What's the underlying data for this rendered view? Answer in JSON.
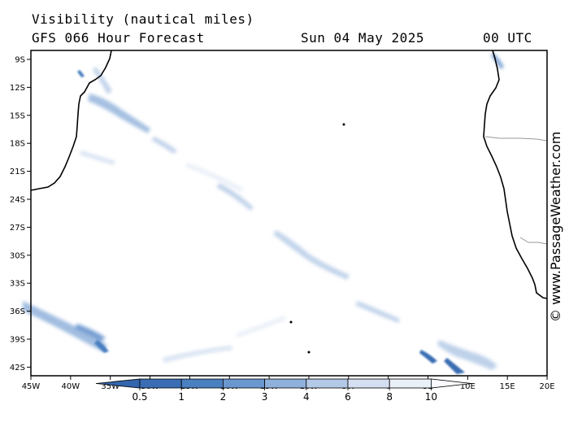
{
  "header": {
    "title": "Visibility (nautical miles)",
    "forecast": "GFS 066 Hour Forecast",
    "date": "Sun 04 May 2025",
    "time": "00 UTC"
  },
  "watermark": "© www.PassageWeather.com",
  "map": {
    "lat_ticks": [
      "9S",
      "12S",
      "15S",
      "18S",
      "21S",
      "24S",
      "27S",
      "30S",
      "33S",
      "36S",
      "39S",
      "42S"
    ],
    "lon_ticks": [
      "45W",
      "40W",
      "35W",
      "30W",
      "25W",
      "20W",
      "15W",
      "10W",
      "5W",
      "0",
      "5E",
      "10E",
      "15E",
      "20E"
    ],
    "land_color": "#ffffff",
    "coast_color": "#000000"
  },
  "legend": {
    "labels": [
      "0.5",
      "1",
      "2",
      "3",
      "4",
      "6",
      "8",
      "10"
    ],
    "colors": [
      "#3a6db3",
      "#4a7fc0",
      "#6b97cf",
      "#8fb0da",
      "#b3c9e6",
      "#d4e0f1",
      "#eaf0f8",
      "#f8fafd"
    ]
  }
}
